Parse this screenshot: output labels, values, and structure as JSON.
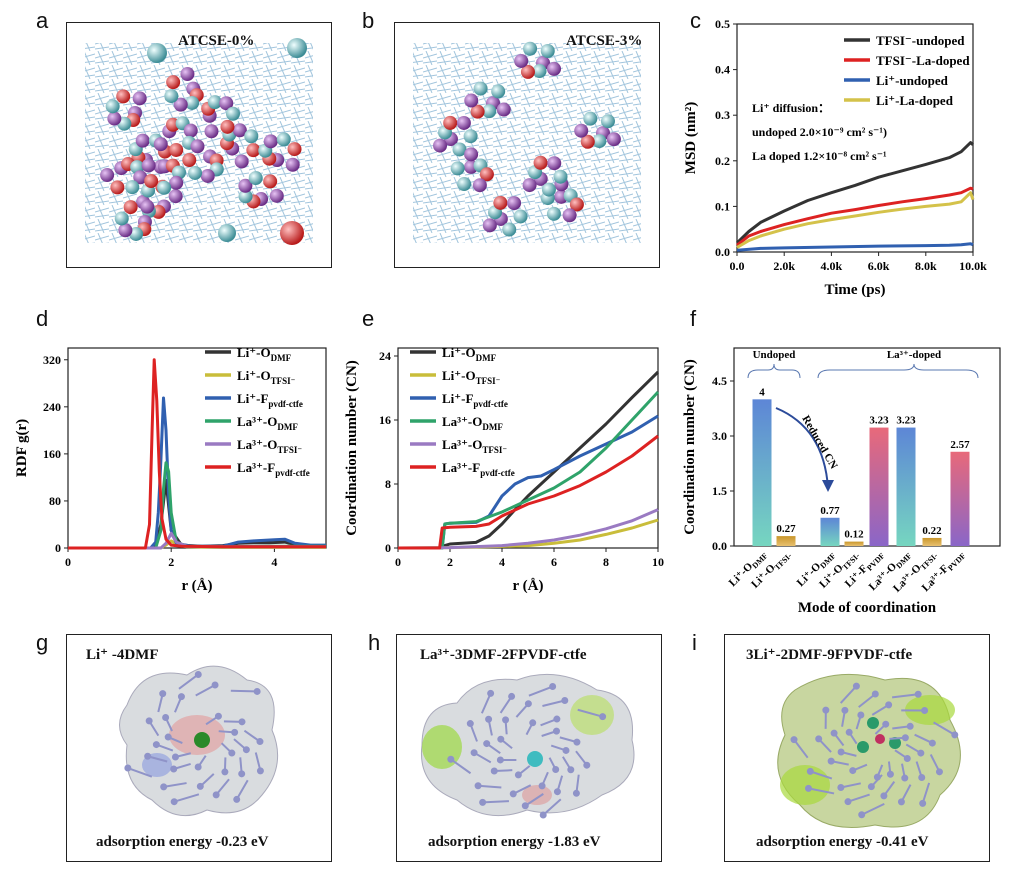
{
  "panel_labels": [
    "a",
    "b",
    "c",
    "d",
    "e",
    "f",
    "g",
    "h",
    "i"
  ],
  "snapshots": [
    {
      "title": "ATCSE-0%"
    },
    {
      "title": "ATCSE-3%"
    }
  ],
  "chart_data": [
    {
      "id": "c",
      "type": "line",
      "xlabel": "Time (ps)",
      "ylabel": "MSD (nm²)",
      "xlim": [
        0,
        10000
      ],
      "ylim": [
        0,
        0.5
      ],
      "xticks": [
        "0.0",
        "2.0k",
        "4.0k",
        "6.0k",
        "8.0k",
        "10.0k"
      ],
      "yticks": [
        "0.0",
        "0.1",
        "0.2",
        "0.3",
        "0.4",
        "0.5"
      ],
      "legend_position": "top-right",
      "annotation": [
        "Li⁺ diffusion：",
        "undoped  2.0×10⁻⁹ cm² s⁻¹)",
        "La doped 1.2×10⁻⁸ cm² s⁻¹"
      ],
      "series": [
        {
          "name": "TFSI⁻-undoped",
          "color": "#333333",
          "x": [
            0,
            500,
            1000,
            2000,
            3000,
            4000,
            5000,
            6000,
            7000,
            8000,
            9000,
            9500,
            9900,
            10000
          ],
          "y": [
            0.02,
            0.045,
            0.065,
            0.09,
            0.113,
            0.13,
            0.146,
            0.164,
            0.178,
            0.192,
            0.207,
            0.22,
            0.24,
            0.235
          ]
        },
        {
          "name": "TFSI⁻-La-doped",
          "color": "#dd2222",
          "x": [
            0,
            500,
            1000,
            2000,
            3000,
            4000,
            5000,
            6000,
            7000,
            8000,
            9000,
            9500,
            9900,
            10000
          ],
          "y": [
            0.015,
            0.035,
            0.045,
            0.06,
            0.073,
            0.085,
            0.093,
            0.102,
            0.11,
            0.117,
            0.125,
            0.13,
            0.14,
            0.138
          ]
        },
        {
          "name": "Li⁺-undoped",
          "color": "#3060b0",
          "x": [
            0,
            1000,
            2000,
            4000,
            6000,
            8000,
            9000,
            9500,
            9900,
            10000
          ],
          "y": [
            0.004,
            0.008,
            0.009,
            0.011,
            0.013,
            0.014,
            0.015,
            0.016,
            0.018,
            0.016
          ]
        },
        {
          "name": "Li⁺-La-doped",
          "color": "#d4c24a",
          "x": [
            0,
            500,
            1000,
            2000,
            3000,
            4000,
            5000,
            6000,
            7000,
            8000,
            9000,
            9500,
            9900,
            10000
          ],
          "y": [
            0.01,
            0.025,
            0.035,
            0.05,
            0.062,
            0.071,
            0.079,
            0.087,
            0.094,
            0.1,
            0.105,
            0.11,
            0.13,
            0.115
          ]
        }
      ]
    },
    {
      "id": "d",
      "type": "line",
      "xlabel": "r (Å)",
      "ylabel": "RDF g(r)",
      "xlim": [
        0,
        5
      ],
      "ylim": [
        0,
        340
      ],
      "xticks": [
        "0",
        "2",
        "4"
      ],
      "yticks": [
        "0",
        "80",
        "160",
        "240",
        "320"
      ],
      "legend_position": "top-right",
      "series": [
        {
          "name": "Li⁺-O_DMF",
          "color": "#333333",
          "x": [
            0,
            1.6,
            1.7,
            1.8,
            1.9,
            2.0,
            2.2,
            2.6,
            3.0,
            3.3,
            3.6,
            3.9,
            4.2,
            4.4,
            4.7,
            5
          ],
          "y": [
            0,
            0,
            2,
            40,
            115,
            30,
            5,
            3,
            4,
            8,
            9,
            9,
            10,
            6,
            4,
            4
          ]
        },
        {
          "name": "Li⁺-O_TFSI⁻",
          "color": "#c9bd3a",
          "x": [
            0,
            1.8,
            1.9,
            2.0,
            2.1,
            2.3,
            3,
            4,
            5
          ],
          "y": [
            0,
            0,
            5,
            12,
            6,
            2,
            1,
            1,
            1
          ]
        },
        {
          "name": "Li⁺-F_pvdf-ctfe",
          "color": "#3060b0",
          "x": [
            0,
            1.6,
            1.7,
            1.75,
            1.8,
            1.85,
            1.9,
            1.95,
            2.0,
            2.1,
            2.4,
            3.0,
            3.3,
            3.6,
            4.0,
            4.2,
            4.4,
            4.7,
            5
          ],
          "y": [
            0,
            0,
            10,
            60,
            150,
            255,
            200,
            90,
            30,
            8,
            3,
            3,
            10,
            12,
            14,
            15,
            8,
            5,
            5
          ]
        },
        {
          "name": "La³⁺-O_DMF",
          "color": "#2fa36a",
          "x": [
            0,
            1.7,
            1.8,
            1.85,
            1.9,
            1.95,
            2.0,
            2.1,
            2.3,
            3,
            4,
            5
          ],
          "y": [
            0,
            0,
            30,
            100,
            145,
            130,
            60,
            10,
            3,
            2,
            3,
            3
          ]
        },
        {
          "name": "La³⁺-O_TFSI⁻",
          "color": "#9a7ac2",
          "x": [
            0,
            1.8,
            1.9,
            2.0,
            2.1,
            2.3,
            3,
            4,
            5
          ],
          "y": [
            0,
            0,
            8,
            25,
            10,
            3,
            2,
            2,
            2
          ]
        },
        {
          "name": "La³⁺-F_pvdf-ctfe",
          "color": "#dd2222",
          "x": [
            0,
            1.5,
            1.58,
            1.63,
            1.67,
            1.72,
            1.77,
            1.82,
            1.9,
            2.0,
            2.2,
            3,
            4,
            5
          ],
          "y": [
            0,
            0,
            40,
            200,
            320,
            250,
            130,
            50,
            15,
            5,
            3,
            2,
            2,
            2
          ]
        }
      ]
    },
    {
      "id": "e",
      "type": "line",
      "xlabel": "r (Å)",
      "ylabel": "Coordination number  (CN)",
      "xlim": [
        0,
        10
      ],
      "ylim": [
        0,
        25
      ],
      "xticks": [
        "0",
        "2",
        "4",
        "6",
        "8",
        "10"
      ],
      "yticks": [
        "0",
        "8",
        "16",
        "24"
      ],
      "legend_position": "top-left",
      "series": [
        {
          "name": "Li⁺-O_DMF",
          "color": "#333333",
          "x": [
            0,
            1.7,
            1.8,
            2,
            3,
            3.5,
            4,
            4.5,
            5,
            6,
            7,
            8,
            9,
            10
          ],
          "y": [
            0,
            0,
            0.3,
            0.5,
            0.7,
            1.5,
            3,
            4.8,
            6.5,
            9.5,
            12.5,
            15.5,
            18.8,
            22
          ]
        },
        {
          "name": "Li⁺-O_TFSI⁻",
          "color": "#c9bd3a",
          "x": [
            0,
            2,
            4,
            5,
            6,
            7,
            8,
            9,
            10
          ],
          "y": [
            0,
            0.05,
            0.2,
            0.3,
            0.6,
            1.0,
            1.7,
            2.5,
            3.5
          ]
        },
        {
          "name": "Li⁺-F_pvdf-ctfe",
          "color": "#3060b0",
          "x": [
            0,
            1.7,
            1.8,
            2,
            3,
            3.5,
            4,
            4.5,
            5,
            5.5,
            6,
            7,
            8,
            9,
            10
          ],
          "y": [
            0,
            0,
            3,
            3.1,
            3.2,
            4,
            6.5,
            8,
            8.8,
            9,
            9.8,
            11.5,
            13,
            14.5,
            16.5
          ]
        },
        {
          "name": "La³⁺-O_DMF",
          "color": "#2fa36a",
          "x": [
            0,
            1.7,
            1.8,
            2,
            3,
            4,
            5,
            6,
            7,
            8,
            9,
            10
          ],
          "y": [
            0,
            0,
            3,
            3.1,
            3.3,
            4.5,
            6,
            7.5,
            9.5,
            12.5,
            16,
            19.5
          ]
        },
        {
          "name": "La³⁺-O_TFSI⁻",
          "color": "#9a7ac2",
          "x": [
            0,
            2,
            4,
            5,
            6,
            7,
            8,
            9,
            10
          ],
          "y": [
            0,
            0.05,
            0.3,
            0.6,
            1.0,
            1.6,
            2.4,
            3.4,
            4.8
          ]
        },
        {
          "name": "La³⁺-F_pvdf-ctfe",
          "color": "#dd2222",
          "x": [
            0,
            1.6,
            1.7,
            2,
            3,
            3.5,
            4,
            5,
            6,
            7,
            8,
            9,
            10
          ],
          "y": [
            0,
            0,
            2.5,
            2.6,
            2.7,
            3,
            4,
            5.5,
            6.5,
            7.8,
            9.5,
            11.5,
            14
          ]
        }
      ]
    },
    {
      "id": "f",
      "type": "bar",
      "xlabel": "Mode of coordination",
      "ylabel": "Coordination number (CN)",
      "ylim": [
        0,
        5.4
      ],
      "yticks": [
        "0.0",
        "1.5",
        "3.0",
        "4.5"
      ],
      "group_labels": [
        "Undoped",
        "La³⁺-doped"
      ],
      "arrow_label": "Reduced CN",
      "categories": [
        "Li⁺-O_DMF",
        "Li⁺-O_TFSI-",
        "Li⁺-O_DMF",
        "Li⁺-O_TFSI-",
        "Li⁺-F_PVDF",
        "La³⁺-O_DMF",
        "La³⁺-O_TFSI-",
        "La³⁺-F_PVDF"
      ],
      "values": [
        4,
        0.27,
        0.77,
        0.12,
        3.23,
        3.23,
        0.22,
        2.57
      ],
      "value_labels": [
        "4",
        "0.27",
        "0.77",
        "0.12",
        "3.23",
        "3.23",
        "0.22",
        "2.57"
      ],
      "colors": {
        "blue": "#5d86d6",
        "orange": "#c9962a",
        "pink": "#e8697a",
        "teal": "#76d6c0",
        "purple": "#8a66c8"
      }
    }
  ],
  "structures": [
    {
      "title": "Li⁺ -4DMF",
      "adsorption": "adsorption energy  -0.23 eV"
    },
    {
      "title": "La³⁺-3DMF-2FPVDF-ctfe",
      "adsorption": "adsorption energy  -1.83 eV"
    },
    {
      "title": "3Li⁺-2DMF-9FPVDF-ctfe",
      "adsorption": "adsorption energy  -0.41 eV"
    }
  ]
}
